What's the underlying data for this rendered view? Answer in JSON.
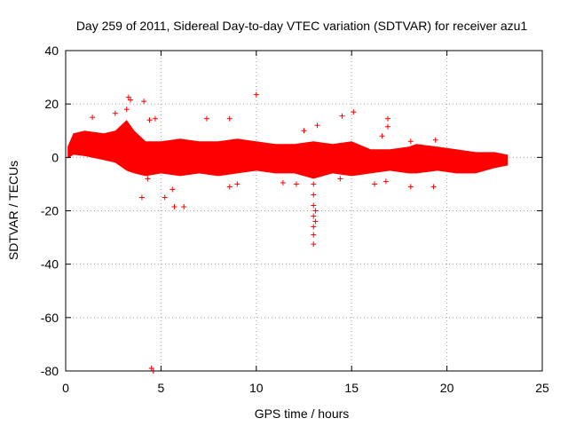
{
  "chart_data": {
    "type": "scatter",
    "title": "Day 259 of 2011, Sidereal Day-to-day VTEC variation (SDTVAR) for receiver azu1",
    "xlabel": "GPS time / hours",
    "ylabel": "SDTVAR / TECUs",
    "xlim": [
      0,
      25
    ],
    "ylim": [
      -80,
      40
    ],
    "x_ticks": [
      0,
      5,
      10,
      15,
      20,
      25
    ],
    "y_ticks": [
      -80,
      -60,
      -40,
      -20,
      0,
      20,
      40
    ],
    "grid": true,
    "marker": "+",
    "color": "#ff0000",
    "series": [
      {
        "name": "SDTVAR",
        "envelope": [
          {
            "x": 0.1,
            "ymin": -0.5,
            "ymax": 4
          },
          {
            "x": 0.4,
            "ymin": 1,
            "ymax": 9
          },
          {
            "x": 1.0,
            "ymin": 0.5,
            "ymax": 10
          },
          {
            "x": 2.0,
            "ymin": -1,
            "ymax": 9
          },
          {
            "x": 2.6,
            "ymin": -2,
            "ymax": 10
          },
          {
            "x": 3.2,
            "ymin": -5,
            "ymax": 14
          },
          {
            "x": 3.6,
            "ymin": -6,
            "ymax": 10
          },
          {
            "x": 4.2,
            "ymin": -7,
            "ymax": 6
          },
          {
            "x": 5.0,
            "ymin": -6,
            "ymax": 6
          },
          {
            "x": 6.0,
            "ymin": -7,
            "ymax": 7
          },
          {
            "x": 7.0,
            "ymin": -6,
            "ymax": 6
          },
          {
            "x": 8.0,
            "ymin": -7,
            "ymax": 6
          },
          {
            "x": 9.0,
            "ymin": -6,
            "ymax": 7
          },
          {
            "x": 10.0,
            "ymin": -5,
            "ymax": 6
          },
          {
            "x": 11.0,
            "ymin": -6,
            "ymax": 5
          },
          {
            "x": 12.0,
            "ymin": -6,
            "ymax": 5
          },
          {
            "x": 13.0,
            "ymin": -8,
            "ymax": 6
          },
          {
            "x": 14.0,
            "ymin": -6,
            "ymax": 5
          },
          {
            "x": 15.0,
            "ymin": -7,
            "ymax": 6
          },
          {
            "x": 16.0,
            "ymin": -6,
            "ymax": 3
          },
          {
            "x": 17.0,
            "ymin": -5,
            "ymax": 3
          },
          {
            "x": 18.0,
            "ymin": -6,
            "ymax": 4
          },
          {
            "x": 18.4,
            "ymin": -6,
            "ymax": 5
          },
          {
            "x": 19.5,
            "ymin": -5,
            "ymax": 4
          },
          {
            "x": 20.5,
            "ymin": -6,
            "ymax": 3
          },
          {
            "x": 21.5,
            "ymin": -6,
            "ymax": 2
          },
          {
            "x": 22.5,
            "ymin": -4,
            "ymax": 2
          },
          {
            "x": 23.2,
            "ymin": -3,
            "ymax": 1
          }
        ],
        "points": [
          {
            "x": 3.3,
            "y": 22.5
          },
          {
            "x": 3.4,
            "y": 21.5
          },
          {
            "x": 4.1,
            "y": 21.0
          },
          {
            "x": 3.2,
            "y": 18.0
          },
          {
            "x": 2.6,
            "y": 16.5
          },
          {
            "x": 4.7,
            "y": 14.5
          },
          {
            "x": 4.4,
            "y": 14.0
          },
          {
            "x": 1.4,
            "y": 15.0
          },
          {
            "x": 10.0,
            "y": 23.5
          },
          {
            "x": 14.5,
            "y": 15.5
          },
          {
            "x": 15.1,
            "y": 17.0
          },
          {
            "x": 16.9,
            "y": 14.5
          },
          {
            "x": 16.9,
            "y": 11.5
          },
          {
            "x": 16.6,
            "y": 8.0
          },
          {
            "x": 7.4,
            "y": 14.5
          },
          {
            "x": 8.6,
            "y": 14.5
          },
          {
            "x": 12.5,
            "y": 10.0
          },
          {
            "x": 13.2,
            "y": 12.0
          },
          {
            "x": 18.1,
            "y": 6.0
          },
          {
            "x": 19.4,
            "y": 6.5
          },
          {
            "x": 4.0,
            "y": -15.0
          },
          {
            "x": 5.2,
            "y": -15.0
          },
          {
            "x": 5.7,
            "y": -18.5
          },
          {
            "x": 6.2,
            "y": -18.5
          },
          {
            "x": 4.3,
            "y": -8.0
          },
          {
            "x": 5.6,
            "y": -12.0
          },
          {
            "x": 9.0,
            "y": -10.0
          },
          {
            "x": 8.6,
            "y": -11.0
          },
          {
            "x": 11.4,
            "y": -9.5
          },
          {
            "x": 12.1,
            "y": -10.0
          },
          {
            "x": 14.4,
            "y": -8.0
          },
          {
            "x": 16.2,
            "y": -10.0
          },
          {
            "x": 16.8,
            "y": -9.0
          },
          {
            "x": 18.1,
            "y": -11.0
          },
          {
            "x": 19.3,
            "y": -11.0
          },
          {
            "x": 4.6,
            "y": -80.0
          },
          {
            "x": 4.5,
            "y": -79.0
          },
          {
            "x": 13.0,
            "y": -10.0
          },
          {
            "x": 13.0,
            "y": -14.0
          },
          {
            "x": 13.0,
            "y": -18.0
          },
          {
            "x": 13.0,
            "y": -22.0
          },
          {
            "x": 13.0,
            "y": -26.0
          },
          {
            "x": 13.0,
            "y": -29.0
          },
          {
            "x": 13.0,
            "y": -32.5
          },
          {
            "x": 13.1,
            "y": -20.0
          },
          {
            "x": 13.1,
            "y": -24.0
          }
        ]
      }
    ]
  }
}
